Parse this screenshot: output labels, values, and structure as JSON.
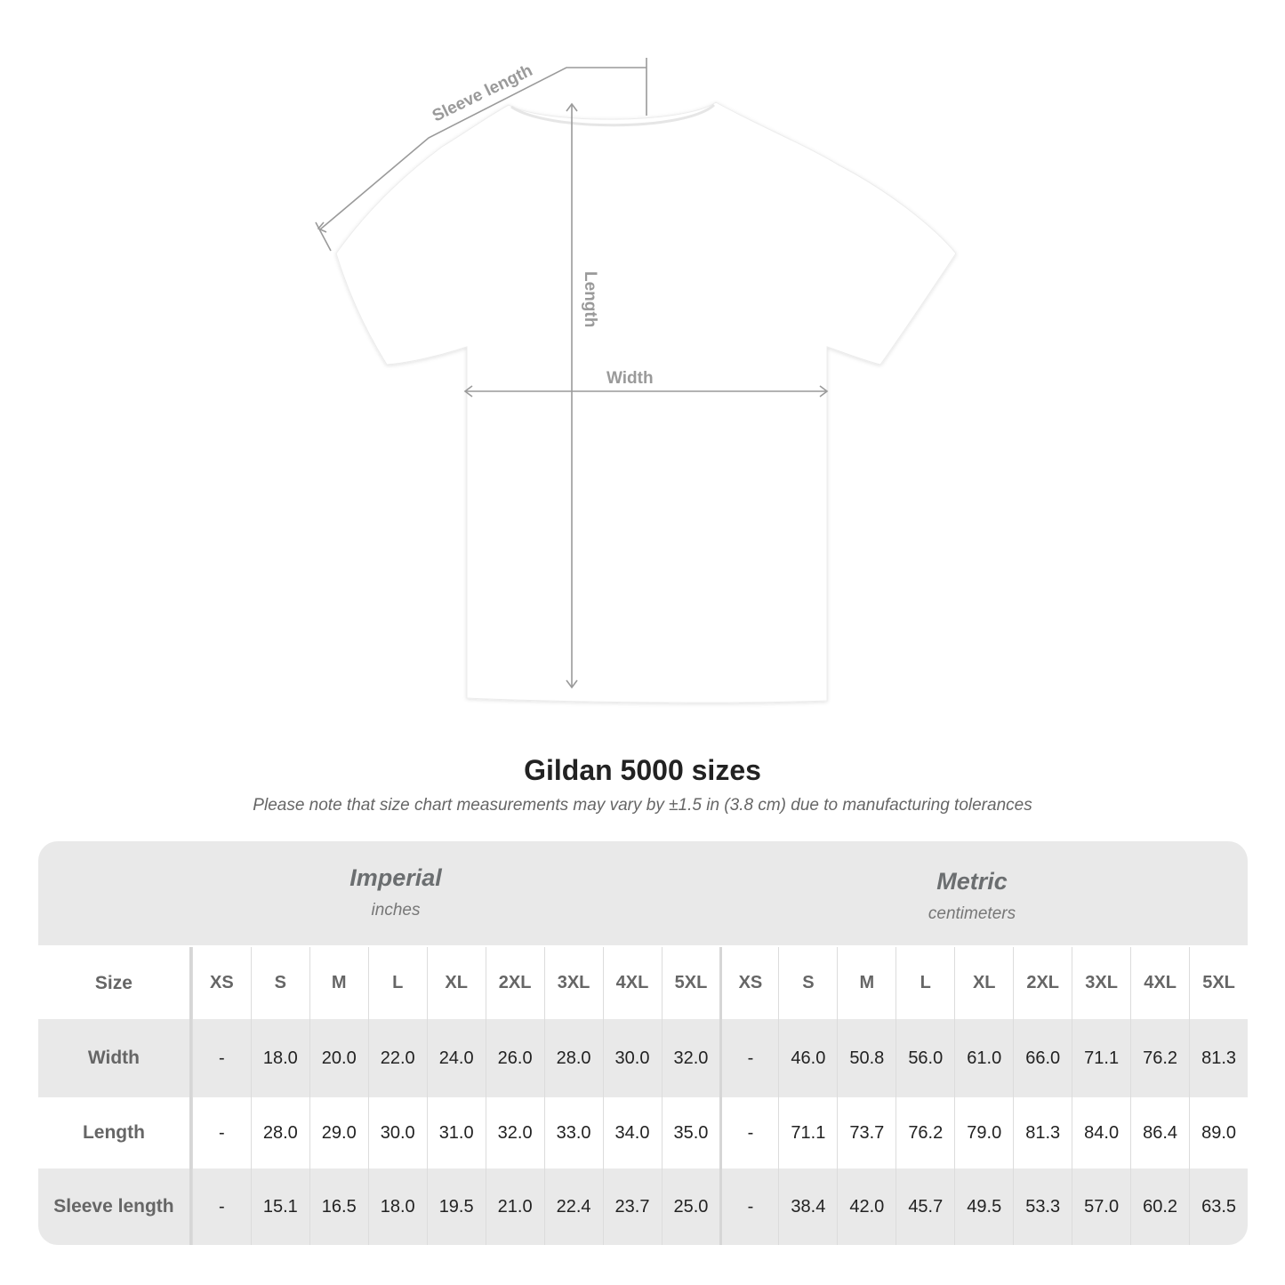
{
  "diagram": {
    "labels": {
      "sleeve_length": "Sleeve length",
      "length": "Length",
      "width": "Width"
    },
    "shirt_color": "#ffffff",
    "measure_line_color": "#999999"
  },
  "title": "Gildan 5000 sizes",
  "subtitle": "Please note that size chart measurements may vary by ±1.5 in (3.8 cm) due to manufacturing tolerances",
  "table": {
    "imperial": {
      "name": "Imperial",
      "unit": "inches"
    },
    "metric": {
      "name": "Metric",
      "unit": "centimeters"
    },
    "size_label": "Size",
    "sizes": [
      "XS",
      "S",
      "M",
      "L",
      "XL",
      "2XL",
      "3XL",
      "4XL",
      "5XL"
    ],
    "rows": [
      {
        "label": "Width",
        "imperial": [
          "-",
          "18.0",
          "20.0",
          "22.0",
          "24.0",
          "26.0",
          "28.0",
          "30.0",
          "32.0"
        ],
        "metric": [
          "-",
          "46.0",
          "50.8",
          "56.0",
          "61.0",
          "66.0",
          "71.1",
          "76.2",
          "81.3"
        ]
      },
      {
        "label": "Length",
        "imperial": [
          "-",
          "28.0",
          "29.0",
          "30.0",
          "31.0",
          "32.0",
          "33.0",
          "34.0",
          "35.0"
        ],
        "metric": [
          "-",
          "71.1",
          "73.7",
          "76.2",
          "79.0",
          "81.3",
          "84.0",
          "86.4",
          "89.0"
        ]
      },
      {
        "label": "Sleeve length",
        "imperial": [
          "-",
          "15.1",
          "16.5",
          "18.0",
          "19.5",
          "21.0",
          "22.4",
          "23.7",
          "25.0"
        ],
        "metric": [
          "-",
          "38.4",
          "42.0",
          "45.7",
          "49.5",
          "53.3",
          "57.0",
          "60.2",
          "63.5"
        ]
      }
    ]
  }
}
